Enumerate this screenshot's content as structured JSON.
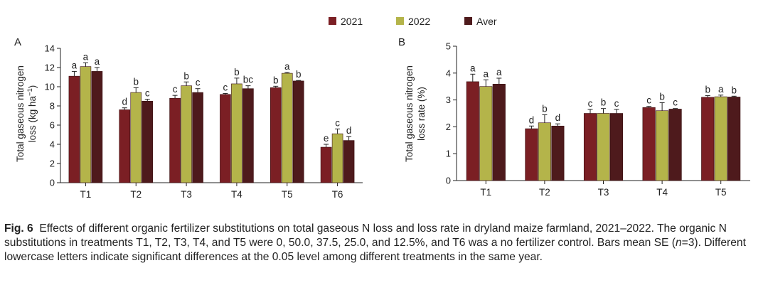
{
  "legend": {
    "items": [
      {
        "name": "2021",
        "color": "#7b1f24"
      },
      {
        "name": "2022",
        "color": "#b4b44a"
      },
      {
        "name": "Aver",
        "color": "#4e1a1c"
      }
    ]
  },
  "chart_data": [
    {
      "type": "bar",
      "panel_label": "A",
      "title": "",
      "xlabel": "",
      "ylabel_line1": "Total gaseous nitrogen",
      "ylabel_line2_prefix": "loss (kg ha",
      "ylabel_line2_sup": "−1",
      "ylabel_line2_suffix": ")",
      "ylim": [
        0,
        14
      ],
      "yticks": [
        0,
        2,
        4,
        6,
        8,
        10,
        12,
        14
      ],
      "categories": [
        "T1",
        "T2",
        "T3",
        "T4",
        "T5",
        "T6"
      ],
      "series": [
        {
          "name": "2021",
          "values": [
            11.1,
            7.6,
            8.8,
            9.2,
            9.9,
            3.7
          ],
          "errors": [
            0.5,
            0.2,
            0.3,
            0.1,
            0.15,
            0.3
          ],
          "letters": [
            "a",
            "d",
            "c",
            "c",
            "b",
            "e"
          ]
        },
        {
          "name": "2022",
          "values": [
            12.1,
            9.4,
            10.1,
            10.3,
            11.4,
            5.1
          ],
          "errors": [
            0.4,
            0.5,
            0.4,
            0.6,
            0.1,
            0.5
          ],
          "letters": [
            "a",
            "b",
            "b",
            "b",
            "a",
            "c"
          ]
        },
        {
          "name": "Aver",
          "values": [
            11.6,
            8.5,
            9.4,
            9.8,
            10.6,
            4.4
          ],
          "errors": [
            0.4,
            0.2,
            0.4,
            0.3,
            0.05,
            0.4
          ],
          "letters": [
            "a",
            "c",
            "c",
            "bc",
            "b",
            "d"
          ]
        }
      ]
    },
    {
      "type": "bar",
      "panel_label": "B",
      "title": "",
      "xlabel": "",
      "ylabel_line1": "Total gaseous nitrogen",
      "ylabel_line2": "loss rate (%)",
      "ylim": [
        0,
        5
      ],
      "yticks": [
        0,
        1,
        2,
        3,
        4,
        5
      ],
      "categories": [
        "T1",
        "T2",
        "T3",
        "T4",
        "T5"
      ],
      "series": [
        {
          "name": "2021",
          "values": [
            3.68,
            1.93,
            2.5,
            2.72,
            3.1
          ],
          "errors": [
            0.28,
            0.1,
            0.15,
            0.04,
            0.06
          ],
          "letters": [
            "a",
            "d",
            "c",
            "c",
            "b"
          ]
        },
        {
          "name": "2022",
          "values": [
            3.5,
            2.15,
            2.5,
            2.6,
            3.12
          ],
          "errors": [
            0.25,
            0.3,
            0.18,
            0.3,
            0.06
          ],
          "letters": [
            "a",
            "b",
            "b",
            "b",
            "a"
          ]
        },
        {
          "name": "Aver",
          "values": [
            3.59,
            2.03,
            2.5,
            2.66,
            3.11
          ],
          "errors": [
            0.22,
            0.08,
            0.15,
            0.02,
            0.03
          ],
          "letters": [
            "a",
            "d",
            "c",
            "c",
            "b"
          ]
        }
      ]
    }
  ],
  "caption": {
    "label": "Fig. 6",
    "text_before_italic": "Effects of different organic fertilizer substitutions on total gaseous N loss and loss rate in dryland maize farmland, 2021–2022.  The organic N substitutions in treatments T1, T2, T3, T4, and T5 were 0, 50.0, 37.5, 25.0, and 12.5%, and T6 was a no fertilizer control.  Bars mean SE (",
    "italic": "n",
    "text_after_italic": "=3).  Different lowercase letters indicate significant differences at the 0.05 level among different treatments in the same year."
  }
}
